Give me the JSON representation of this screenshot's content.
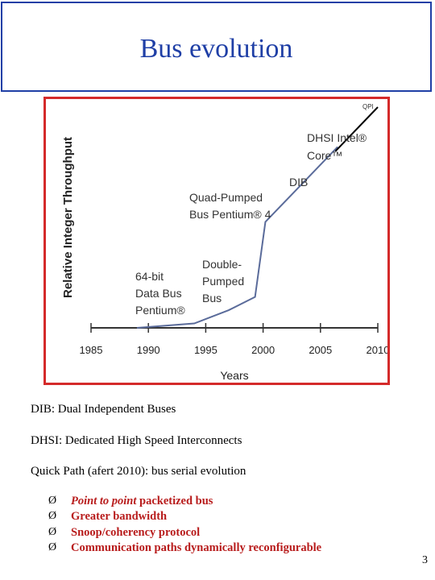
{
  "title": "Bus evolution",
  "chart_data": {
    "type": "line",
    "title": "",
    "xlabel": "Years",
    "ylabel": "Relative Integer Throughput",
    "xlim": [
      1985,
      2010
    ],
    "x_ticks": [
      "1985",
      "1990",
      "1995",
      "2000",
      "2005",
      "2010"
    ],
    "series": [
      {
        "name": "",
        "x": [
          1989,
          1994,
          1997,
          1999.3,
          2000.2,
          2006.5
        ],
        "y": [
          0.0,
          0.02,
          0.08,
          0.14,
          0.48,
          0.82
        ]
      }
    ],
    "qpi_line": {
      "x": [
        2006.3,
        2010
      ],
      "y": [
        0.8,
        1.0
      ]
    },
    "annotations": [
      {
        "id": "bus64",
        "lines": [
          "64-bit",
          "Data Bus",
          "Pentium®"
        ]
      },
      {
        "id": "double",
        "lines": [
          "Double-",
          "Pumped",
          "Bus"
        ]
      },
      {
        "id": "quad",
        "lines": [
          "Quad-Pumped",
          "Bus Pentium® 4"
        ]
      },
      {
        "id": "dib",
        "lines": [
          "DIB"
        ]
      },
      {
        "id": "dhsi",
        "lines": [
          "DHSI Intel®",
          "Core™"
        ]
      },
      {
        "id": "qpi",
        "lines": [
          "QPI"
        ]
      }
    ]
  },
  "captions": {
    "dib": "DIB:  Dual Independent Buses",
    "dhsi": "DHSI: Dedicated High Speed Interconnects",
    "qpi": "Quick Path (afert 2010): bus serial evolution"
  },
  "bullets": [
    {
      "em": "Point to point",
      "rest": " packetized bus"
    },
    {
      "em": "",
      "rest": "Greater bandwidth"
    },
    {
      "em": "",
      "rest": "Snoop/coherency protocol"
    },
    {
      "em": "",
      "rest": "Communication paths dynamically reconfigurable"
    }
  ],
  "bullet_glyph": "Ø",
  "page_number": "3"
}
